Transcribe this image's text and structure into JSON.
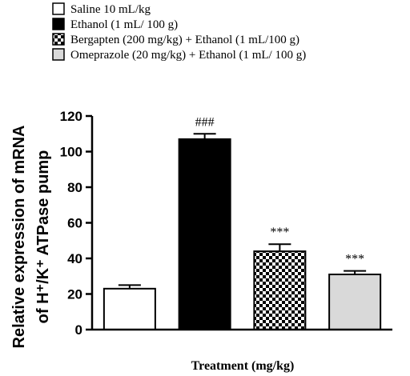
{
  "chart_data": {
    "type": "bar",
    "categories": [
      "Saline 10 mL/kg",
      "Ethanol (1 mL/ 100 g)",
      "Bergapten (200 mg/kg) + Ethanol (1 mL/100 g)",
      "Omeprazole (20 mg/kg) + Ethanol (1 mL/ 100 g)"
    ],
    "series": [
      {
        "values": [
          23,
          107,
          44,
          31
        ],
        "error": [
          2,
          3,
          4,
          2
        ],
        "fills": [
          "white",
          "black",
          "checker",
          "lightgray"
        ],
        "annotations": [
          "",
          "###",
          "***",
          "***"
        ]
      }
    ],
    "legend": [
      {
        "label": "Saline 10 mL/kg",
        "fill": "white"
      },
      {
        "label": "Ethanol (1 mL/ 100 g)",
        "fill": "black"
      },
      {
        "label": "Bergapten (200 mg/kg) + Ethanol (1 mL/100 g)",
        "fill": "checker"
      },
      {
        "label": "Omeprazole (20 mg/kg) + Ethanol (1 mL/ 100 g)",
        "fill": "lightgray"
      }
    ],
    "legend_position": "top",
    "xlabel": "Treatment (mg/kg)",
    "ylabel_line1": "Relative expression of mRNA",
    "ylabel_line2": "of H⁺/K⁺ ATPase pump",
    "ylim": [
      0,
      120
    ],
    "yticks": [
      0,
      20,
      40,
      60,
      80,
      100,
      120
    ],
    "grid": false,
    "colors": {
      "black": "#000000",
      "lightgray": "#d9d9d9",
      "white": "#ffffff"
    }
  }
}
